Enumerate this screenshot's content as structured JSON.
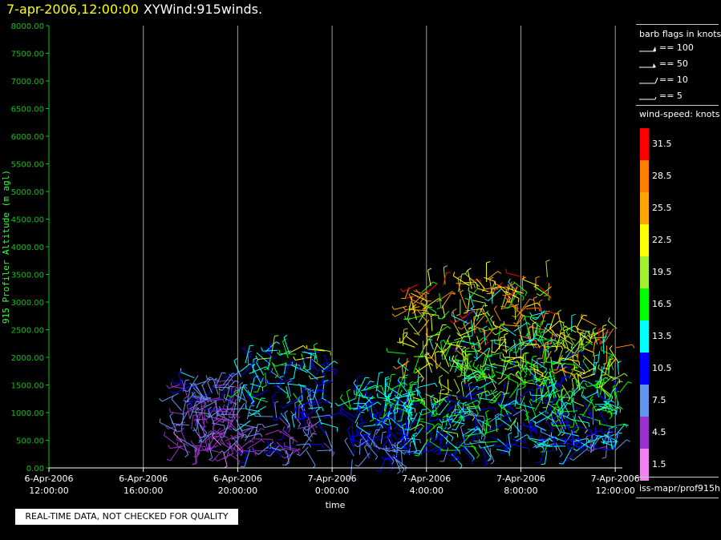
{
  "title": {
    "timestamp": "7-apr-2006,12:00:00",
    "plot_name": "XYWind:915winds."
  },
  "legend": {
    "barb_title": "barb flags in knots",
    "barbs": [
      {
        "label": "== 100",
        "type": "flag"
      },
      {
        "label": "== 50",
        "type": "flag50"
      },
      {
        "label": "== 10",
        "type": "full"
      },
      {
        "label": "== 5",
        "type": "half"
      }
    ],
    "colorbar_title": "wind-speed: knots",
    "colorbar": [
      {
        "label": "31.5",
        "color": "#ff0000"
      },
      {
        "label": "28.5",
        "color": "#ff7f00"
      },
      {
        "label": "25.5",
        "color": "#ffa500"
      },
      {
        "label": "22.5",
        "color": "#ffff00"
      },
      {
        "label": "19.5",
        "color": "#a0f030"
      },
      {
        "label": "16.5",
        "color": "#00ff00"
      },
      {
        "label": "13.5",
        "color": "#00ffff"
      },
      {
        "label": "10.5",
        "color": "#0000ff"
      },
      {
        "label": "7.5",
        "color": "#6495ed"
      },
      {
        "label": "4.5",
        "color": "#9932cc"
      },
      {
        "label": "1.5",
        "color": "#ee82ee"
      }
    ],
    "source": "iss-mapr/prof915h"
  },
  "quality_notice": "REAL-TIME DATA, NOT CHECKED FOR QUALITY",
  "chart_data": {
    "type": "wind-barb time-height",
    "xlabel": "time",
    "ylabel": "915 Profiler Altitude (m agl)",
    "x_ticks": [
      {
        "date": "6-Apr-2006",
        "time": "12:00:00",
        "hour": 0
      },
      {
        "date": "6-Apr-2006",
        "time": "16:00:00",
        "hour": 4
      },
      {
        "date": "6-Apr-2006",
        "time": "20:00:00",
        "hour": 8
      },
      {
        "date": "7-Apr-2006",
        "time": "0:00:00",
        "hour": 12
      },
      {
        "date": "7-Apr-2006",
        "time": "4:00:00",
        "hour": 16
      },
      {
        "date": "7-Apr-2006",
        "time": "8:00:00",
        "hour": 20
      },
      {
        "date": "7-Apr-2006",
        "time": "12:00:00",
        "hour": 24
      }
    ],
    "y_ticks": [
      "0.00",
      "500.00",
      "1000.00",
      "1500.00",
      "2000.00",
      "2500.00",
      "3000.00",
      "3500.00",
      "4000.00",
      "4500.00",
      "5000.00",
      "5500.00",
      "6000.00",
      "6500.00",
      "7000.00",
      "7500.00",
      "8000.00"
    ],
    "ylim": [
      0,
      8000
    ],
    "xlim_hours": [
      0,
      24.3
    ],
    "vertical_grid": true,
    "horizontal_grid": false,
    "colors": {
      "axis": "#00cc00",
      "grid": "#a0a0a0",
      "ylabel": "#33ff33"
    },
    "barb_clusters": [
      {
        "t0": 5.4,
        "t1": 8.0,
        "z0": 250,
        "z1": 1700,
        "vmin": 2,
        "vmax": 12,
        "n": 150
      },
      {
        "t0": 8.0,
        "t1": 11.8,
        "z0": 300,
        "z1": 2200,
        "vmin": 3,
        "vmax": 22,
        "n": 180
      },
      {
        "t0": 12.7,
        "t1": 15.3,
        "z0": 150,
        "z1": 1450,
        "vmin": 6,
        "vmax": 18,
        "n": 140
      },
      {
        "t0": 15.0,
        "t1": 17.8,
        "z0": 250,
        "z1": 3350,
        "vmin": 8,
        "vmax": 32,
        "n": 190
      },
      {
        "t0": 17.5,
        "t1": 21.3,
        "z0": 300,
        "z1": 3500,
        "vmin": 6,
        "vmax": 33,
        "n": 340
      },
      {
        "t0": 21.0,
        "t1": 24.2,
        "z0": 300,
        "z1": 2600,
        "vmin": 5,
        "vmax": 32,
        "n": 240
      }
    ]
  }
}
